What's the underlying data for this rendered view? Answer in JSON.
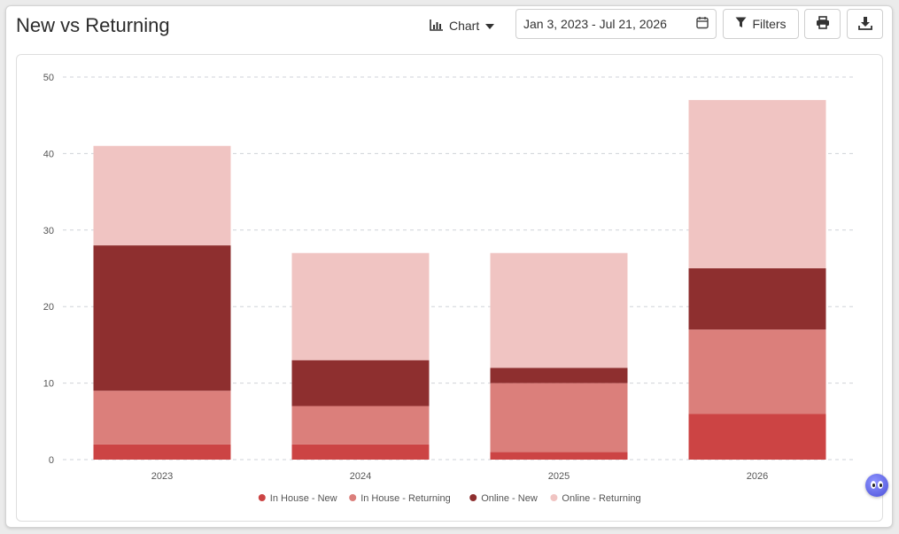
{
  "header": {
    "title": "New vs Returning",
    "view_label": "Chart",
    "date_range": "Jan 3, 2023 - Jul 21, 2026",
    "filters_label": "Filters"
  },
  "icons": {
    "view": "bar-chart-icon",
    "dropdown": "caret-down-icon",
    "calendar": "calendar-icon",
    "filter": "funnel-icon",
    "print": "printer-icon",
    "download": "download-icon",
    "assistant": "chat-assistant-icon"
  },
  "chart_data": {
    "type": "bar",
    "stacked": true,
    "categories": [
      "2023",
      "2024",
      "2025",
      "2026"
    ],
    "series": [
      {
        "name": "In House - New",
        "color": "#cc4444",
        "values": [
          2,
          2,
          1,
          6
        ]
      },
      {
        "name": "In House - Returning",
        "color": "#db7f7b",
        "values": [
          7,
          5,
          9,
          11
        ]
      },
      {
        "name": "Online - New",
        "color": "#8e2f2f",
        "values": [
          19,
          6,
          2,
          8
        ]
      },
      {
        "name": "Online - Returning",
        "color": "#f0c4c2",
        "values": [
          13,
          14,
          15,
          22
        ]
      }
    ],
    "ylim": [
      0,
      50
    ],
    "yticks": [
      0,
      10,
      20,
      30,
      40,
      50
    ],
    "grid": true,
    "legend": "bottom",
    "title": "",
    "xlabel": "",
    "ylabel": ""
  }
}
